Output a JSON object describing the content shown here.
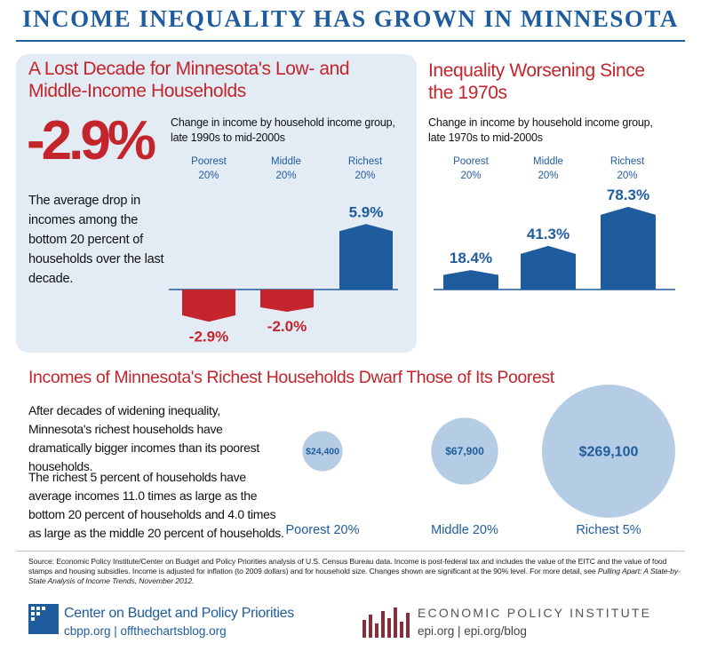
{
  "title": "INCOME INEQUALITY HAS GROWN IN MINNESOTA",
  "left_panel": {
    "heading_line1": "A Lost Decade for Minnesota's Low- and",
    "heading_line2": "Middle-Income Households",
    "big_stat": "-2.9%",
    "stat_description": "The average drop in incomes among the bottom 20 percent of households over the last decade.",
    "subtitle_line1": "Change in income by household income group,",
    "subtitle_line2": "late 1990s to mid-2000s"
  },
  "right_panel": {
    "heading_line1": "Inequality Worsening Since",
    "heading_line2": "the 1970s",
    "subtitle_line1": "Change in income by household income group,",
    "subtitle_line2": "late 1970s to mid-2000s"
  },
  "bottom": {
    "heading": "Incomes of Minnesota's Richest Households Dwarf Those of Its Poorest",
    "para1": "After decades of widening inequality, Minnesota's richest households have dramatically bigger incomes than its poorest households.",
    "para2": "The richest 5 percent of households have average incomes 11.0 times as large as the bottom 20 percent of households and 4.0 times as large as the middle 20 percent of households."
  },
  "chart_data": [
    {
      "type": "bar",
      "title": "A Lost Decade for Minnesota's Low- and Middle-Income Households",
      "subtitle": "Change in income by household income group, late 1990s to mid-2000s",
      "categories": [
        "Poorest\n20%",
        "Middle\n20%",
        "Richest\n20%"
      ],
      "values": [
        -2.9,
        -2.0,
        5.9
      ],
      "labels": [
        "-2.9%",
        "-2.0%",
        "5.9%"
      ],
      "colors": [
        "#c4242b",
        "#c4242b",
        "#1f5c9e"
      ]
    },
    {
      "type": "bar",
      "title": "Inequality Worsening Since the 1970s",
      "subtitle": "Change in income by household income group, late 1970s to mid-2000s",
      "categories": [
        "Poorest\n20%",
        "Middle\n20%",
        "Richest\n20%"
      ],
      "values": [
        18.4,
        41.3,
        78.3
      ],
      "labels": [
        "18.4%",
        "41.3%",
        "78.3%"
      ],
      "colors": [
        "#1f5c9e",
        "#1f5c9e",
        "#1f5c9e"
      ]
    },
    {
      "type": "bubble",
      "title": "Incomes of Minnesota's Richest Households Dwarf Those of Its Poorest",
      "categories": [
        "Poorest 20%",
        "Middle 20%",
        "Richest 5%"
      ],
      "values": [
        24400,
        67900,
        269100
      ],
      "labels": [
        "$24,400",
        "$67,900",
        "$269,100"
      ],
      "color": "#b4cce4"
    }
  ],
  "source": {
    "text": "Source: Economic Policy Institute/Center on Budget and Policy Priorities analysis of U.S. Census Bureau data.  Income is post-federal tax and includes the value of the EITC and the value of food stamps and housing subsidies. Income is adjusted for inflation (to 2009 dollars) and for household size. Changes shown are significant at the 90% level.  For more detail, see ",
    "italic": "Pulling Apart: A State-by-State Analysis of Income Trends, November 2012."
  },
  "footer": {
    "cbpp_name": "Center on Budget and Policy Priorities",
    "cbpp_url": "cbpp.org | offthechartsblog.org",
    "epi_name": "ECONOMIC POLICY INSTITUTE",
    "epi_url": "epi.org | epi.org/blog"
  },
  "colors": {
    "brand_blue": "#1f5c9e",
    "accent_red": "#c4242b",
    "panel_bg": "#e3ebf5",
    "bubble": "#b4cce4"
  }
}
